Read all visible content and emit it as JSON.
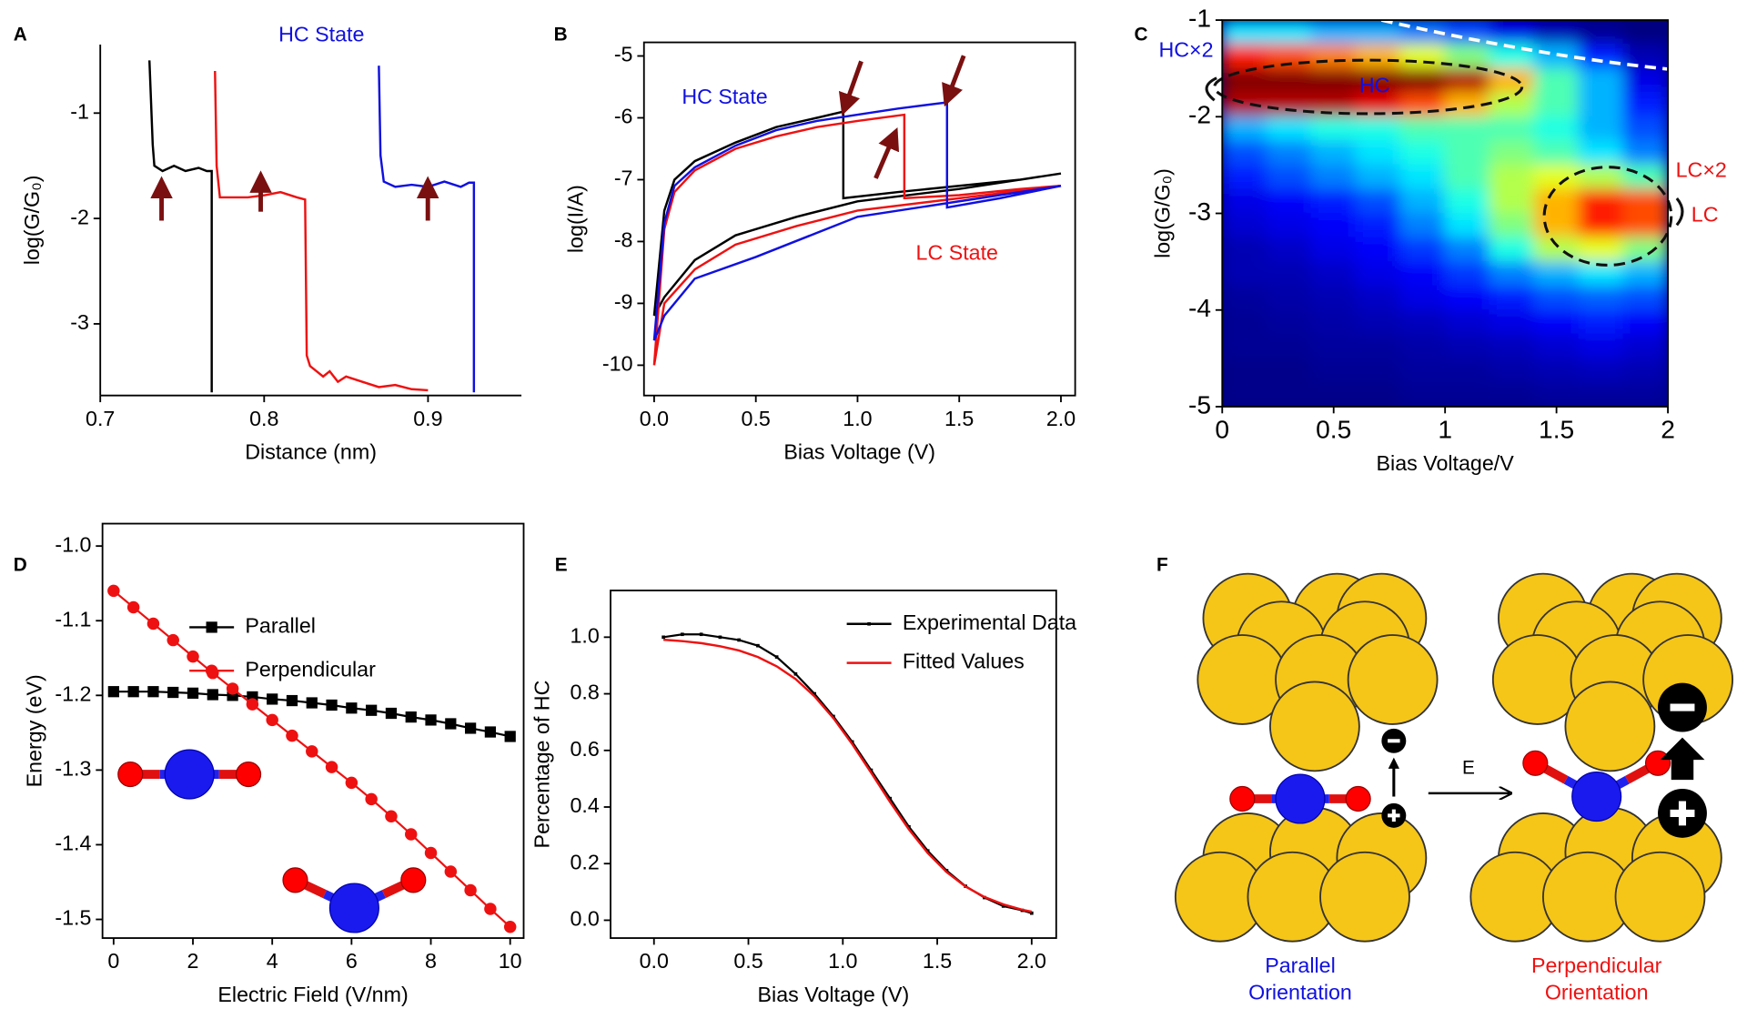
{
  "chart_data": [
    {
      "type": "line",
      "panel": "A",
      "xlabel": "Distance (nm)",
      "ylabel": "log(G/G₀)",
      "xlim": [
        0.7,
        0.957
      ],
      "ylim": [
        -3.68,
        -0.35
      ],
      "xticks": [
        0.7,
        0.8,
        0.9
      ],
      "yticks": [
        -1,
        -2,
        -3
      ],
      "annotations": [
        {
          "text": "HC State",
          "color": "#1010e0"
        }
      ],
      "series": [
        {
          "color": "#000000",
          "x": [
            0.73,
            0.732,
            0.733,
            0.738,
            0.745,
            0.752,
            0.76,
            0.765,
            0.768,
            0.768
          ],
          "values": [
            -0.5,
            -1.3,
            -1.5,
            -1.55,
            -1.5,
            -1.55,
            -1.52,
            -1.55,
            -1.55,
            -3.65
          ]
        },
        {
          "color": "#ee1111",
          "x": [
            0.77,
            0.771,
            0.773,
            0.78,
            0.79,
            0.8,
            0.81,
            0.82,
            0.825,
            0.826,
            0.828,
            0.832,
            0.836,
            0.84,
            0.845,
            0.85,
            0.86,
            0.87,
            0.88,
            0.89,
            0.9
          ],
          "values": [
            -0.6,
            -1.5,
            -1.8,
            -1.8,
            -1.8,
            -1.78,
            -1.75,
            -1.8,
            -1.82,
            -3.3,
            -3.4,
            -3.45,
            -3.5,
            -3.45,
            -3.55,
            -3.5,
            -3.55,
            -3.6,
            -3.58,
            -3.62,
            -3.63
          ]
        },
        {
          "color": "#1010e0",
          "x": [
            0.87,
            0.871,
            0.873,
            0.88,
            0.89,
            0.9,
            0.91,
            0.92,
            0.925,
            0.928,
            0.928
          ],
          "values": [
            -0.55,
            -1.4,
            -1.65,
            -1.7,
            -1.68,
            -1.7,
            -1.65,
            -1.7,
            -1.66,
            -1.66,
            -3.65
          ]
        }
      ]
    },
    {
      "type": "line",
      "panel": "B",
      "xlabel": "Bias Voltage (V)",
      "ylabel": "log(I/A)",
      "xlim": [
        -0.05,
        2.07
      ],
      "ylim": [
        -10.49,
        -4.78
      ],
      "xticks": [
        {
          "value": 0,
          "label": "0.0"
        },
        0.5,
        {
          "value": 1,
          "label": "1.0"
        },
        1.5,
        {
          "value": 2,
          "label": "2.0"
        }
      ],
      "yticks": [
        -5,
        -6,
        -7,
        -8,
        -9,
        -10
      ],
      "annotations": [
        {
          "text": "HC State",
          "color": "#1010e0"
        },
        {
          "text": "LC State",
          "color": "#ee1111"
        }
      ],
      "series": [
        {
          "color": "#000000",
          "x": [
            0,
            0.05,
            0.1,
            0.2,
            0.4,
            0.6,
            0.8,
            0.93,
            0.93,
            1.2,
            1.5,
            1.8,
            2.0,
            1.5,
            1.0,
            0.7,
            0.4,
            0.2,
            0.05,
            0
          ],
          "values": [
            -9.2,
            -7.5,
            -7.0,
            -6.7,
            -6.4,
            -6.15,
            -6.0,
            -5.9,
            -7.3,
            -7.2,
            -7.1,
            -7.0,
            -6.9,
            -7.15,
            -7.35,
            -7.6,
            -7.9,
            -8.3,
            -8.9,
            -9.2
          ]
        },
        {
          "color": "#ee1111",
          "x": [
            0,
            0.05,
            0.1,
            0.2,
            0.4,
            0.6,
            0.8,
            1.0,
            1.23,
            1.23,
            1.5,
            1.8,
            2.0,
            1.5,
            1.0,
            0.7,
            0.4,
            0.2,
            0.05,
            0
          ],
          "values": [
            -10.0,
            -7.8,
            -7.2,
            -6.85,
            -6.5,
            -6.3,
            -6.15,
            -6.05,
            -5.95,
            -7.3,
            -7.25,
            -7.15,
            -7.1,
            -7.3,
            -7.5,
            -7.75,
            -8.05,
            -8.45,
            -9.0,
            -10.0
          ]
        },
        {
          "color": "#1010e0",
          "x": [
            0,
            0.05,
            0.1,
            0.2,
            0.4,
            0.6,
            0.8,
            1.0,
            1.2,
            1.44,
            1.44,
            1.7,
            2.0,
            1.5,
            1.0,
            0.5,
            0.2,
            0.05,
            0
          ],
          "values": [
            -9.6,
            -7.7,
            -7.1,
            -6.8,
            -6.45,
            -6.2,
            -6.05,
            -5.95,
            -5.85,
            -5.75,
            -7.45,
            -7.3,
            -7.1,
            -7.35,
            -7.6,
            -8.25,
            -8.6,
            -9.2,
            -9.6
          ]
        }
      ]
    },
    {
      "type": "heatmap",
      "panel": "C",
      "xlabel": "Bias Voltage/V",
      "ylabel": "log(G/G₀)",
      "xlim": [
        0,
        2
      ],
      "ylim": [
        -5,
        -1
      ],
      "xticks": [
        0,
        0.5,
        1,
        1.5,
        2
      ],
      "yticks": [
        -1,
        -2,
        -3,
        -4,
        -5
      ],
      "zlim": [
        0,
        1
      ],
      "xbins": [
        0,
        0.2,
        0.4,
        0.6,
        0.8,
        1.0,
        1.2,
        1.4,
        1.6,
        1.8,
        2.0
      ],
      "ybins": [
        -1,
        -1.25,
        -1.5,
        -1.75,
        -2,
        -2.25,
        -2.5,
        -2.75,
        -3,
        -3.25,
        -3.5,
        -3.75,
        -4,
        -4.25,
        -4.5,
        -4.75,
        -5
      ],
      "z": [
        [
          0.35,
          0.35,
          0.3,
          0.3,
          0.25,
          0.2,
          0.1,
          0.05,
          0.02,
          0.0
        ],
        [
          0.85,
          0.8,
          0.75,
          0.7,
          0.6,
          0.5,
          0.4,
          0.3,
          0.15,
          0.05
        ],
        [
          1,
          1,
          1,
          1,
          1,
          0.95,
          0.7,
          0.45,
          0.3,
          0.1
        ],
        [
          0.95,
          0.95,
          0.95,
          0.9,
          0.8,
          0.7,
          0.55,
          0.45,
          0.3,
          0.15
        ],
        [
          0.3,
          0.35,
          0.4,
          0.4,
          0.45,
          0.45,
          0.45,
          0.4,
          0.3,
          0.2
        ],
        [
          0.2,
          0.25,
          0.3,
          0.35,
          0.4,
          0.45,
          0.5,
          0.45,
          0.35,
          0.25
        ],
        [
          0.15,
          0.2,
          0.25,
          0.3,
          0.35,
          0.45,
          0.55,
          0.6,
          0.55,
          0.45
        ],
        [
          0.1,
          0.12,
          0.15,
          0.2,
          0.3,
          0.4,
          0.55,
          0.7,
          0.85,
          0.8
        ],
        [
          0.08,
          0.1,
          0.12,
          0.15,
          0.25,
          0.35,
          0.5,
          0.7,
          0.85,
          0.8
        ],
        [
          0.05,
          0.07,
          0.1,
          0.12,
          0.18,
          0.25,
          0.4,
          0.55,
          0.6,
          0.5
        ],
        [
          0.05,
          0.05,
          0.07,
          0.1,
          0.12,
          0.18,
          0.25,
          0.3,
          0.35,
          0.3
        ],
        [
          0.03,
          0.04,
          0.05,
          0.07,
          0.1,
          0.12,
          0.15,
          0.2,
          0.22,
          0.2
        ],
        [
          0.02,
          0.03,
          0.04,
          0.05,
          0.06,
          0.08,
          0.1,
          0.12,
          0.15,
          0.12
        ],
        [
          0.02,
          0.02,
          0.03,
          0.03,
          0.04,
          0.05,
          0.06,
          0.08,
          0.1,
          0.08
        ],
        [
          0.01,
          0.01,
          0.02,
          0.02,
          0.03,
          0.03,
          0.04,
          0.05,
          0.06,
          0.05
        ],
        [
          0.01,
          0.01,
          0.01,
          0.01,
          0.02,
          0.02,
          0.02,
          0.03,
          0.03,
          0.03
        ]
      ],
      "annotations": [
        {
          "text": "HC×2",
          "color": "#1010e0"
        },
        {
          "text": "HC",
          "color": "#1010e0"
        },
        {
          "text": "LC×2",
          "color": "#ee1111"
        },
        {
          "text": "LC",
          "color": "#ee1111"
        }
      ]
    },
    {
      "type": "line",
      "panel": "D",
      "xlabel": "Electric Field (V/nm)",
      "ylabel": "Energy (eV)",
      "xlim": [
        -0.28,
        10.34
      ],
      "ylim": [
        -1.525,
        -0.97
      ],
      "xticks": [
        0,
        2,
        4,
        6,
        8,
        10
      ],
      "yticks": [
        {
          "value": -1,
          "label": "-1.0"
        },
        -1.1,
        -1.2,
        -1.3,
        -1.4,
        -1.5
      ],
      "x": [
        0,
        0.5,
        1,
        1.5,
        2,
        2.5,
        3,
        3.5,
        4,
        4.5,
        5,
        5.5,
        6,
        6.5,
        7,
        7.5,
        8,
        8.5,
        9,
        9.5,
        10
      ],
      "series": [
        {
          "name": "Parallel",
          "color": "#000000",
          "marker": "square",
          "values": [
            -1.195,
            -1.195,
            -1.195,
            -1.196,
            -1.197,
            -1.199,
            -1.2,
            -1.202,
            -1.205,
            -1.207,
            -1.21,
            -1.213,
            -1.217,
            -1.22,
            -1.224,
            -1.229,
            -1.233,
            -1.238,
            -1.244,
            -1.249,
            -1.255
          ]
        },
        {
          "name": "Perpendicular",
          "color": "#ee1111",
          "marker": "circle",
          "values": [
            -1.06,
            -1.082,
            -1.104,
            -1.126,
            -1.148,
            -1.17,
            -1.191,
            -1.212,
            -1.233,
            -1.254,
            -1.275,
            -1.296,
            -1.317,
            -1.339,
            -1.362,
            -1.386,
            -1.411,
            -1.436,
            -1.461,
            -1.486,
            -1.51
          ]
        }
      ]
    },
    {
      "type": "line",
      "panel": "E",
      "xlabel": "Bias Voltage (V)",
      "ylabel": "Percentage of HC",
      "xlim": [
        -0.23,
        2.13
      ],
      "ylim": [
        -0.063,
        1.165
      ],
      "xticks": [
        {
          "value": 0,
          "label": "0.0"
        },
        0.5,
        {
          "value": 1,
          "label": "1.0"
        },
        1.5,
        {
          "value": 2,
          "label": "2.0"
        }
      ],
      "yticks": [
        {
          "value": 0,
          "label": "0.0"
        },
        0.2,
        0.4,
        0.6,
        0.8,
        {
          "value": 1,
          "label": "1.0"
        }
      ],
      "x": [
        0.05,
        0.15,
        0.25,
        0.35,
        0.45,
        0.55,
        0.65,
        0.75,
        0.85,
        0.95,
        1.05,
        1.15,
        1.25,
        1.35,
        1.45,
        1.55,
        1.65,
        1.75,
        1.85,
        1.95,
        2.0
      ],
      "series": [
        {
          "name": "Experimental Data",
          "color": "#000000",
          "marker": "dot",
          "values": [
            1.0,
            1.01,
            1.01,
            1.0,
            0.99,
            0.97,
            0.93,
            0.87,
            0.8,
            0.72,
            0.63,
            0.53,
            0.43,
            0.33,
            0.245,
            0.175,
            0.12,
            0.08,
            0.05,
            0.035,
            0.025
          ]
        },
        {
          "name": "Fitted Values",
          "color": "#ee1111",
          "values": [
            0.991,
            0.986,
            0.979,
            0.968,
            0.953,
            0.93,
            0.897,
            0.852,
            0.791,
            0.714,
            0.622,
            0.521,
            0.418,
            0.321,
            0.237,
            0.17,
            0.119,
            0.082,
            0.056,
            0.037,
            0.03
          ]
        }
      ]
    }
  ],
  "diagram": {
    "panel": "F",
    "field_label": "E",
    "left_caption": [
      "Parallel",
      "Orientation"
    ],
    "right_caption": [
      "Perpendicular",
      "Orientation"
    ]
  }
}
